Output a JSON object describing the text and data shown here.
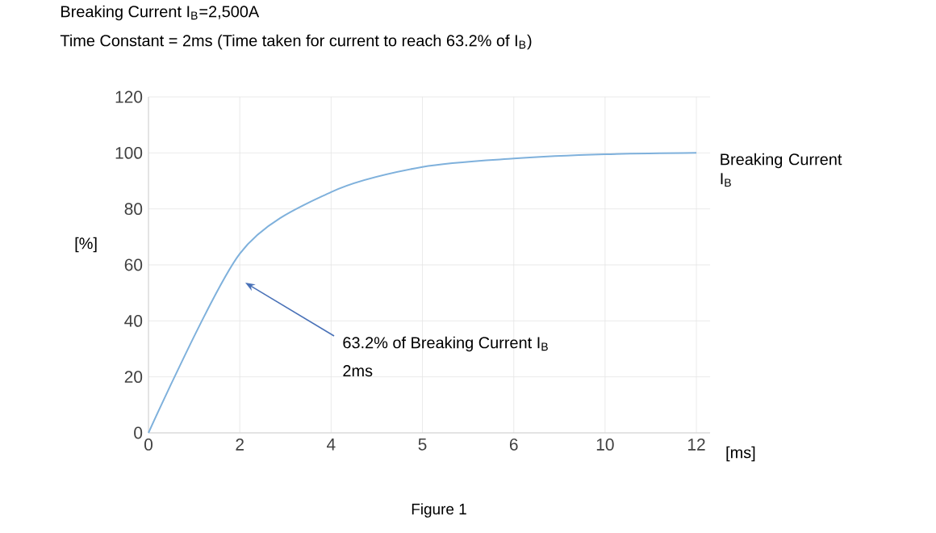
{
  "chart_data": {
    "type": "line",
    "title": "Breaking Current I$_{B}$=2,500A",
    "subtitle": "Time Constant = 2ms (Time taken for current to reach 63.2% of I$_{B}$)",
    "xlabel": "[ms]",
    "ylabel": "[%]",
    "categories": [
      "0",
      "2",
      "4",
      "5",
      "6",
      "10",
      "12"
    ],
    "series": [
      {
        "name": "Breaking Current I$_{B}$",
        "color": "#7fb1dc",
        "values": [
          0,
          64,
          86,
          95,
          98,
          99.5,
          100
        ]
      }
    ],
    "ylim": [
      0,
      120
    ],
    "yticks": [
      0,
      20,
      40,
      60,
      80,
      100,
      120
    ],
    "grid": true,
    "legend": false,
    "marker": "none",
    "line_style": "solid",
    "annotations": [
      "63.2% of Breaking Current I$_{B}$",
      "2ms",
      "Figure 1"
    ]
  }
}
